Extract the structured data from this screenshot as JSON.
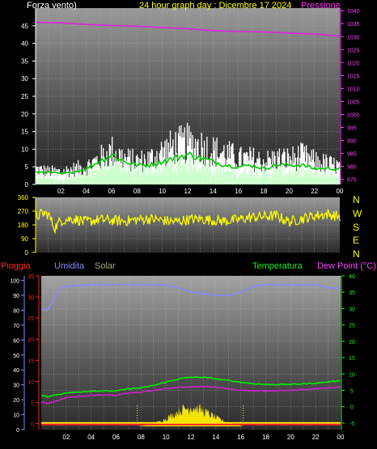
{
  "header": {
    "left_label": "Forza vento)",
    "center_label": "24 hour graph day : Dicembre 17 2024",
    "right_label": "Pressione"
  },
  "wind_dir_labels": [
    "N",
    "W",
    "S",
    "E",
    "N"
  ],
  "bottom_header": {
    "rain": "Pioggia",
    "humidity": "Umidita",
    "solar": "Solar",
    "temperature": "Temperatura",
    "dewpoint": "Dew Point (°C)"
  },
  "colors": {
    "wind_gust": "#ffffff",
    "wind_avg": "#00cc00",
    "wind_fill": "#ccffcc",
    "pressure": "#dd22dd",
    "direction": "#ffff00",
    "humidity": "#8888ff",
    "temperature": "#00ee00",
    "dewpoint": "#cc22cc",
    "solar": "#ffee00",
    "rain": "#ff2222",
    "axis_left": "#ffffff",
    "axis_pressure": "#ff44ff",
    "axis_rain": "#ff2222",
    "axis_humidity": "#8888ff",
    "axis_temp": "#22ee22",
    "axis_dir": "#ffff00"
  },
  "chart_data": [
    {
      "type": "line",
      "name_id": "wind-pressure",
      "x_ticks": [
        "02",
        "04",
        "06",
        "08",
        "10",
        "12",
        "14",
        "16",
        "18",
        "20",
        "22",
        "00"
      ],
      "y_left_ticks": [
        0,
        5,
        10,
        15,
        20,
        25,
        30,
        35,
        40,
        45
      ],
      "y_left_range": [
        0,
        50
      ],
      "y_right_ticks": [
        975,
        980,
        985,
        990,
        995,
        1000,
        1005,
        1010,
        1015,
        1020,
        1025,
        1030,
        1035,
        1040
      ],
      "y_right_range": [
        973,
        1041
      ],
      "gust_profile": [
        [
          0,
          6
        ],
        [
          1,
          5
        ],
        [
          2,
          5
        ],
        [
          3,
          6
        ],
        [
          4,
          7
        ],
        [
          5,
          10
        ],
        [
          6,
          13
        ],
        [
          7,
          10
        ],
        [
          8,
          9
        ],
        [
          9,
          10
        ],
        [
          10,
          13
        ],
        [
          11,
          15
        ],
        [
          12,
          16
        ],
        [
          13,
          15
        ],
        [
          14,
          13
        ],
        [
          15,
          12
        ],
        [
          16,
          10
        ],
        [
          17,
          10
        ],
        [
          18,
          9
        ],
        [
          19,
          10
        ],
        [
          20,
          10
        ],
        [
          21,
          11
        ],
        [
          22,
          9
        ],
        [
          23,
          8
        ],
        [
          24,
          7
        ]
      ],
      "avg_profile": [
        [
          0,
          2
        ],
        [
          1,
          2
        ],
        [
          2,
          1.5
        ],
        [
          3,
          2
        ],
        [
          4,
          3
        ],
        [
          5,
          5
        ],
        [
          6,
          7
        ],
        [
          7,
          5
        ],
        [
          8,
          4
        ],
        [
          9,
          4
        ],
        [
          10,
          5
        ],
        [
          11,
          6
        ],
        [
          12,
          7
        ],
        [
          13,
          6
        ],
        [
          14,
          5
        ],
        [
          15,
          4
        ],
        [
          16,
          3.5
        ],
        [
          17,
          4
        ],
        [
          18,
          3
        ],
        [
          19,
          4
        ],
        [
          20,
          4
        ],
        [
          21,
          4
        ],
        [
          22,
          3
        ],
        [
          23,
          3
        ],
        [
          24,
          3
        ]
      ],
      "pressure": [
        [
          0,
          1035.5
        ],
        [
          2,
          1035.3
        ],
        [
          4,
          1034.7
        ],
        [
          6,
          1034.3
        ],
        [
          8,
          1034.0
        ],
        [
          10,
          1033.5
        ],
        [
          12,
          1033.0
        ],
        [
          14,
          1032.3
        ],
        [
          16,
          1032.0
        ],
        [
          18,
          1031.8
        ],
        [
          20,
          1031.4
        ],
        [
          22,
          1031.0
        ],
        [
          24,
          1030.2
        ]
      ]
    },
    {
      "type": "line",
      "name_id": "wind-direction",
      "y_ticks": [
        0,
        90,
        180,
        270,
        360
      ],
      "y_range": [
        0,
        360
      ],
      "direction_profile": [
        [
          0,
          230
        ],
        [
          0.5,
          255
        ],
        [
          1,
          250
        ],
        [
          1.5,
          160
        ],
        [
          2,
          210
        ],
        [
          3,
          220
        ],
        [
          4,
          200
        ],
        [
          5,
          215
        ],
        [
          6,
          210
        ],
        [
          7,
          205
        ],
        [
          8,
          215
        ],
        [
          9,
          220
        ],
        [
          10,
          210
        ],
        [
          11,
          200
        ],
        [
          12,
          215
        ],
        [
          13,
          220
        ],
        [
          14,
          210
        ],
        [
          15,
          205
        ],
        [
          16,
          215
        ],
        [
          17,
          230
        ],
        [
          18,
          235
        ],
        [
          19,
          240
        ],
        [
          20,
          200
        ],
        [
          21,
          220
        ],
        [
          22,
          240
        ],
        [
          23,
          250
        ],
        [
          24,
          235
        ]
      ]
    },
    {
      "type": "line",
      "name_id": "temp-humidity-rain",
      "x_ticks": [
        "02",
        "04",
        "06",
        "08",
        "10",
        "12",
        "14",
        "16",
        "18",
        "20",
        "22",
        "00"
      ],
      "y_rain_ticks": [
        0,
        5,
        10,
        15,
        20,
        25,
        30,
        35
      ],
      "y_rain_range": [
        -1.4,
        35
      ],
      "y_humidity_ticks": [
        0,
        10,
        20,
        30,
        40,
        50,
        60,
        70,
        80,
        90,
        100
      ],
      "y_humidity_range": [
        0,
        103
      ],
      "y_temp_ticks": [
        -5,
        0,
        5,
        10,
        15,
        20,
        25,
        30,
        35,
        40
      ],
      "y_temp_range": [
        -7,
        40
      ],
      "humidity": [
        [
          0,
          81
        ],
        [
          0.5,
          80
        ],
        [
          1,
          88
        ],
        [
          1.5,
          95
        ],
        [
          2,
          96
        ],
        [
          4,
          97
        ],
        [
          6,
          97
        ],
        [
          8,
          97
        ],
        [
          10,
          97
        ],
        [
          11,
          95
        ],
        [
          12,
          92
        ],
        [
          13,
          91
        ],
        [
          14,
          90
        ],
        [
          15,
          90
        ],
        [
          16,
          92
        ],
        [
          17,
          96
        ],
        [
          18,
          97
        ],
        [
          20,
          97
        ],
        [
          22,
          97
        ],
        [
          23,
          95
        ],
        [
          24,
          95
        ]
      ],
      "temperature": [
        [
          0,
          3.5
        ],
        [
          0.5,
          3.0
        ],
        [
          1,
          3.5
        ],
        [
          2,
          4.2
        ],
        [
          4,
          4.8
        ],
        [
          6,
          4.8
        ],
        [
          7,
          5.5
        ],
        [
          8,
          5.7
        ],
        [
          9,
          6.5
        ],
        [
          10,
          7.5
        ],
        [
          11,
          8.5
        ],
        [
          12,
          9.0
        ],
        [
          13,
          9.0
        ],
        [
          14,
          8.5
        ],
        [
          15,
          8.0
        ],
        [
          16,
          7.5
        ],
        [
          17,
          7.0
        ],
        [
          18,
          6.8
        ],
        [
          20,
          6.8
        ],
        [
          22,
          7.2
        ],
        [
          24,
          8.0
        ]
      ],
      "dewpoint": [
        [
          0,
          1.5
        ],
        [
          0.5,
          1.0
        ],
        [
          1,
          1.5
        ],
        [
          2,
          2.8
        ],
        [
          4,
          3.5
        ],
        [
          6,
          3.5
        ],
        [
          7,
          4.2
        ],
        [
          8,
          4.4
        ],
        [
          9,
          5.0
        ],
        [
          10,
          5.5
        ],
        [
          11,
          6.0
        ],
        [
          12,
          6.0
        ],
        [
          13,
          6.2
        ],
        [
          14,
          6.0
        ],
        [
          15,
          5.5
        ],
        [
          16,
          5.0
        ],
        [
          17,
          4.8
        ],
        [
          18,
          4.8
        ],
        [
          20,
          5.0
        ],
        [
          22,
          5.5
        ],
        [
          24,
          6.0
        ]
      ],
      "solar": [
        [
          7.7,
          0
        ],
        [
          8.5,
          0.1
        ],
        [
          9.2,
          0.3
        ],
        [
          9.8,
          0.6
        ],
        [
          10.5,
          1.0
        ],
        [
          11,
          1.4
        ],
        [
          11.5,
          1.6
        ],
        [
          12,
          1.8
        ],
        [
          12.5,
          1.7
        ],
        [
          13,
          1.4
        ],
        [
          13.5,
          1.1
        ],
        [
          14,
          0.8
        ],
        [
          14.8,
          0.4
        ],
        [
          15.5,
          0.2
        ],
        [
          16.2,
          0
        ]
      ],
      "rain_total": 0
    }
  ]
}
